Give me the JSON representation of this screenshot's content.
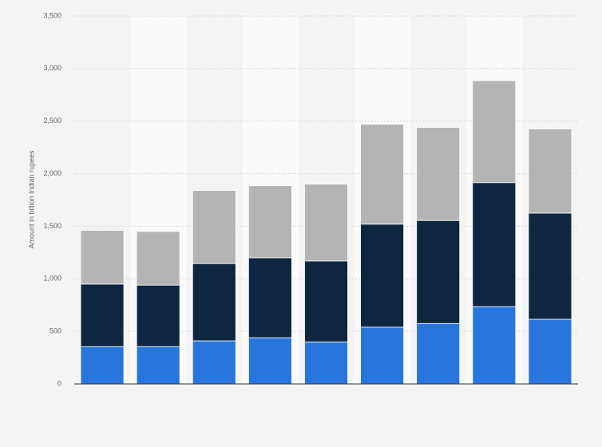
{
  "chart_data": {
    "type": "stacked-bar",
    "y_label": "Amount in billion Indian rupees",
    "categories": [
      null,
      null,
      null,
      null,
      null,
      null,
      null,
      null,
      null
    ],
    "series": [
      {
        "color": "#2876dd",
        "values": [
          355,
          355,
          410,
          440,
          400,
          540,
          575,
          735,
          615
        ]
      },
      {
        "color": "#0f2640",
        "values": [
          595,
          585,
          735,
          760,
          770,
          980,
          980,
          1180,
          1010
        ]
      },
      {
        "color": "#b4b4b4",
        "values": [
          510,
          510,
          695,
          685,
          730,
          950,
          885,
          970,
          800
        ]
      }
    ],
    "ylim": [
      0,
      3500
    ],
    "yticks": [
      0,
      500,
      {
        "value": 1000,
        "label": "1,000"
      },
      {
        "value": 1500,
        "label": "1,500"
      },
      {
        "value": 2000,
        "label": "2,000"
      },
      {
        "value": 2500,
        "label": "2,500"
      },
      {
        "value": 3000,
        "label": "3,000"
      },
      {
        "value": 3500,
        "label": "3,500"
      }
    ],
    "grid": true
  }
}
